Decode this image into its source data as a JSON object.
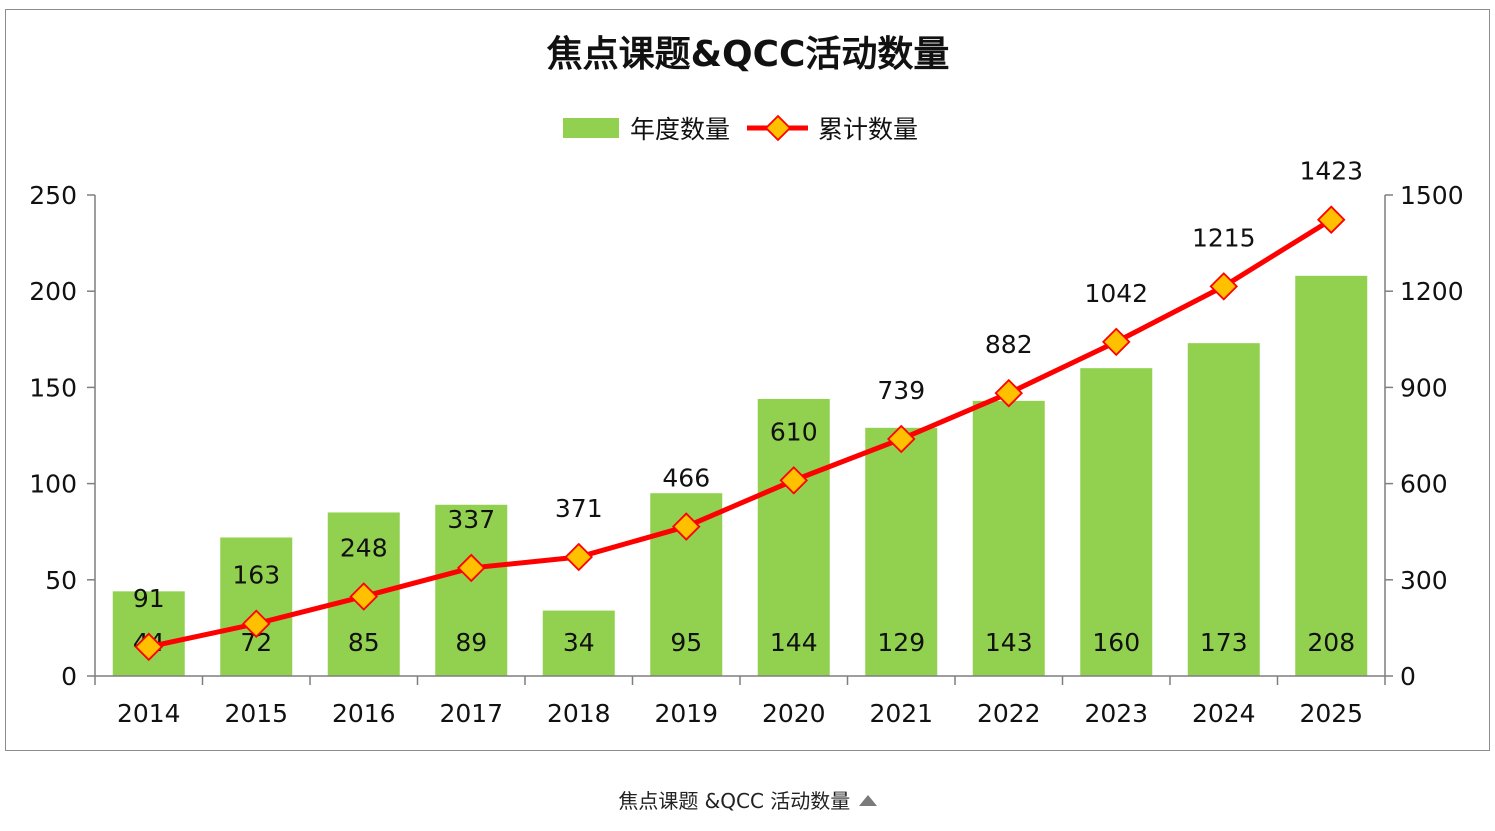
{
  "chart_data": {
    "type": "bar",
    "title": "焦点课题&QCC活动数量",
    "categories": [
      "2014",
      "2015",
      "2016",
      "2017",
      "2018",
      "2019",
      "2020",
      "2021",
      "2022",
      "2023",
      "2024",
      "2025"
    ],
    "series": [
      {
        "name": "年度数量",
        "type": "bar",
        "axis": "left",
        "color": "#92d050",
        "values": [
          44,
          72,
          85,
          89,
          34,
          95,
          144,
          129,
          143,
          160,
          173,
          208
        ]
      },
      {
        "name": "累计数量",
        "type": "line",
        "axis": "right",
        "color": "#ff0000",
        "marker_color": "#ffc000",
        "values": [
          91,
          163,
          248,
          337,
          371,
          466,
          610,
          739,
          882,
          1042,
          1215,
          1423
        ]
      }
    ],
    "y_left": {
      "min": 0,
      "max": 250,
      "ticks": [
        0,
        50,
        100,
        150,
        200,
        250
      ]
    },
    "y_right": {
      "min": 0,
      "max": 1500,
      "ticks": [
        0,
        300,
        600,
        900,
        1200,
        1500
      ]
    },
    "legend_position": "top",
    "grid": false
  },
  "caption": {
    "text": "焦点课题 &QCC 活动数量",
    "icon": "triangle-up-icon"
  }
}
